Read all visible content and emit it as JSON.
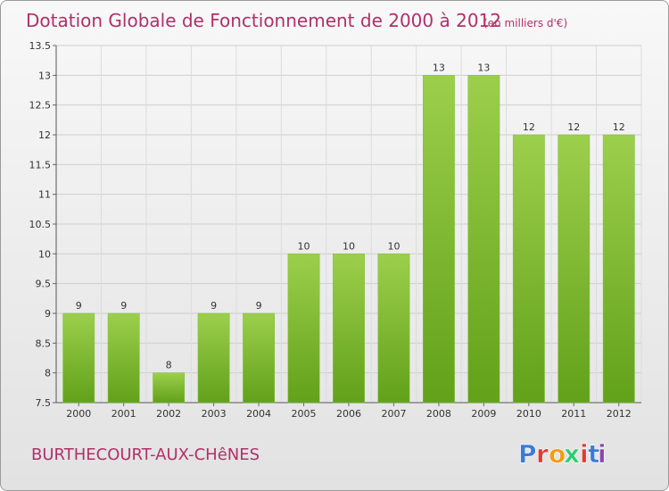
{
  "header": {
    "title": "Dotation Globale de Fonctionnement de 2000 à 2012",
    "unit": "(en milliers d'€)"
  },
  "footer": {
    "commune": "BURTHECOURT-AUX-CHêNES",
    "brand": "Proxiti",
    "brand_colors": [
      "#3a7bd5",
      "#e03c31",
      "#f39c12",
      "#2ecc71",
      "#e03c31",
      "#3a7bd5",
      "#8e44ad"
    ]
  },
  "colors": {
    "bar_top": "#9ccf4c",
    "bar_bottom": "#62a11a",
    "title": "#b0306a"
  },
  "chart_data": {
    "type": "bar",
    "categories": [
      "2000",
      "2001",
      "2002",
      "2003",
      "2004",
      "2005",
      "2006",
      "2007",
      "2008",
      "2009",
      "2010",
      "2011",
      "2012"
    ],
    "values": [
      9,
      9,
      8,
      9,
      9,
      10,
      10,
      10,
      13,
      13,
      12,
      12,
      12
    ],
    "value_labels": [
      "9",
      "9",
      "8",
      "9",
      "9",
      "10",
      "10",
      "10",
      "13",
      "13",
      "12",
      "12",
      "12"
    ],
    "yticks": [
      "7.5",
      "8",
      "8.5",
      "9",
      "9.5",
      "10",
      "10.5",
      "11",
      "11.5",
      "12",
      "12.5",
      "13",
      "13.5"
    ],
    "ylim": [
      7.5,
      13.5
    ],
    "grid": true,
    "title": "Dotation Globale de Fonctionnement de 2000 à 2012",
    "xlabel": "",
    "ylabel": ""
  }
}
